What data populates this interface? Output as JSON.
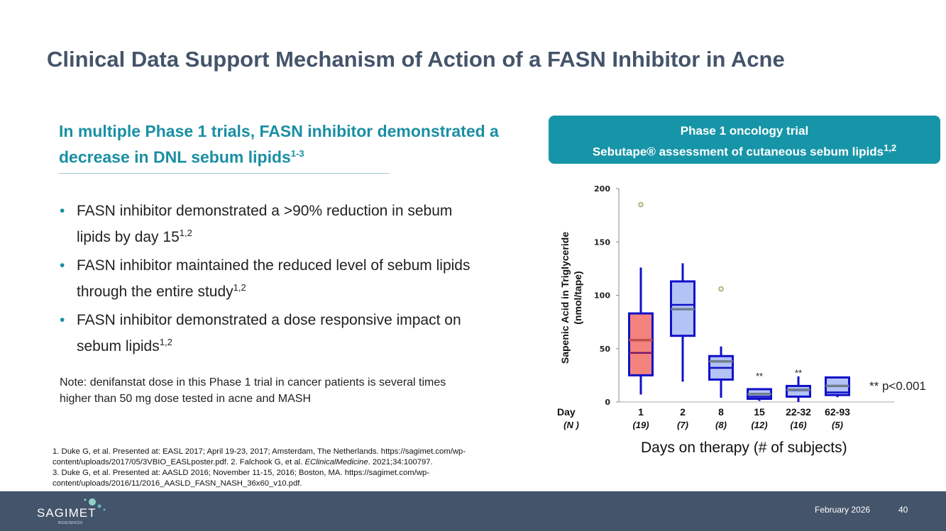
{
  "title": "Clinical Data Support Mechanism of Action of a FASN Inhibitor in Acne",
  "subtitle": {
    "text": "In multiple Phase 1 trials, FASN inhibitor demonstrated a decrease in DNL sebum lipids",
    "sup": "1-3"
  },
  "bullets": [
    {
      "text": "FASN inhibitor demonstrated a >90% reduction in sebum lipids by day 15",
      "sup": "1,2"
    },
    {
      "text": "FASN inhibitor maintained the reduced level of sebum lipids through the entire study",
      "sup": "1,2"
    },
    {
      "text": "FASN inhibitor demonstrated a dose responsive impact on sebum lipids",
      "sup": "1,2"
    }
  ],
  "bullet_glyph": "•",
  "note": "Note: denifanstat dose in this Phase 1 trial in cancer patients is several times higher than 50 mg dose tested in acne and MASH",
  "references": [
    "1. Duke G, et al. Presented at: EASL 2017; April 19-23, 2017; Amsterdam, The Netherlands. https://sagimet.com/wp-content/uploads/2017/05/3VBIO_EASLposter.pdf. 2. Falchook G, et al. ",
    "EClinicalMedicine",
    ". 2021;34:100797.",
    "3. Duke G, et al. Presented at: AASLD 2016; November 11-15,  2016; Boston, MA. https://sagimet.com/wp-content/uploads/2016/11/2016_AASLD_FASN_NASH_36x60_v10.pdf."
  ],
  "chart_header": {
    "line1": "Phase 1 oncology trial",
    "line2": "Sebutape® assessment of cutaneous sebum lipids",
    "sup": "1,2"
  },
  "chart_data": {
    "type": "box",
    "ylabel": "Sapenic Acid in Triglyceride (nmol/tape)",
    "ylabel_line1": "Sapenic Acid in Triglyceride",
    "ylabel_line2": "(nmol/tape)",
    "ylim": [
      0,
      200
    ],
    "yticks": [
      "0",
      "50",
      "100",
      "150",
      "200"
    ],
    "xlabel": "Days on therapy (# of subjects)",
    "day_label": "Day",
    "n_label": "(N )",
    "categories": [
      "1",
      "2",
      "8",
      "15",
      "22-32",
      "62-93"
    ],
    "n": [
      "(19)",
      "(7)",
      "(8)",
      "(12)",
      "(16)",
      "(5)"
    ],
    "boxes": [
      {
        "min": 7,
        "q1": 25,
        "median": 46,
        "mean": 58,
        "q3": 83,
        "max": 126,
        "outliers": [
          185
        ],
        "color": "#f4837d",
        "mean_color": "#c0504d",
        "sig": ""
      },
      {
        "min": 19,
        "q1": 62,
        "median": 91,
        "mean": 87,
        "q3": 113,
        "max": 130,
        "outliers": [],
        "color": "#b4c3f5",
        "mean_color": "#6f7f8f",
        "sig": ""
      },
      {
        "min": 4,
        "q1": 21,
        "median": 32,
        "mean": 38,
        "q3": 43,
        "max": 52,
        "outliers": [
          106
        ],
        "color": "#b4c3f5",
        "mean_color": "#6f7f8f",
        "sig": ""
      },
      {
        "min": 1,
        "q1": 3,
        "median": 5,
        "mean": 7.5,
        "q3": 12,
        "max": 13,
        "outliers": [],
        "color": "#b4c3f5",
        "mean_color": "#6f7f8f",
        "sig": "**"
      },
      {
        "min": 0,
        "q1": 5,
        "median": 11,
        "mean": 11.5,
        "q3": 15,
        "max": 24,
        "outliers": [],
        "color": "#b4c3f5",
        "mean_color": "#6f7f8f",
        "sig": "**"
      },
      {
        "min": 4.5,
        "q1": 6.5,
        "median": 9,
        "mean": 15,
        "q3": 23,
        "max": 23,
        "outliers": [],
        "color": "#b4c3f5",
        "mean_color": "#6f7f8f",
        "sig": ""
      }
    ],
    "annotation": "** p<0.001"
  },
  "footer": {
    "date": "February 2026",
    "page": "40",
    "logo": "SAGIMET",
    "logo_sub": "BIOSCIENCES"
  },
  "colors": {
    "title": "#44546a",
    "accent": "#1795a8",
    "footer": "#44546a",
    "box_stroke": "#1010c8"
  }
}
